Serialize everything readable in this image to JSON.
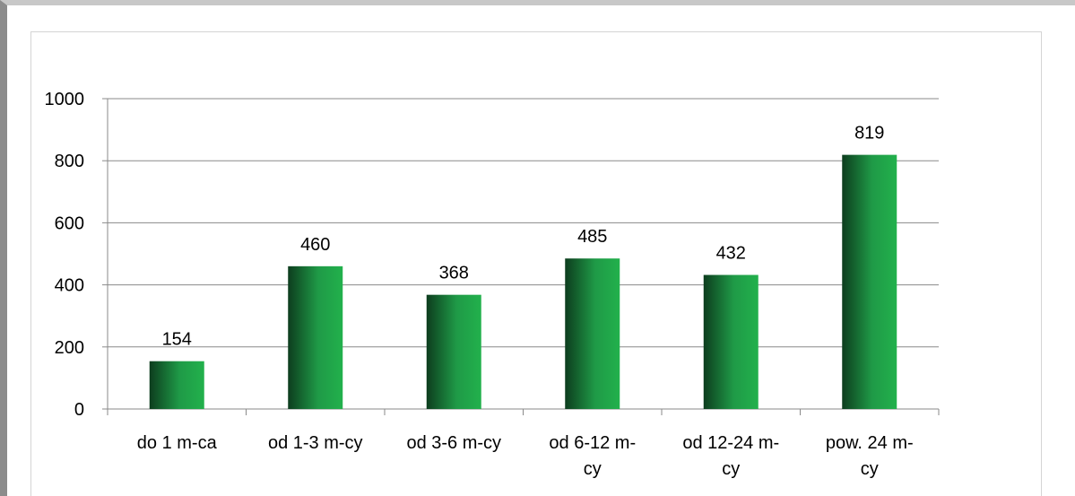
{
  "chart_data": {
    "type": "bar",
    "categories": [
      [
        "do 1 m-ca"
      ],
      [
        "od 1-3 m-cy"
      ],
      [
        "od 3-6 m-cy"
      ],
      [
        "od 6-12 m-",
        "cy"
      ],
      [
        "od 12-24 m-",
        "cy"
      ],
      [
        "pow. 24 m-",
        "cy"
      ]
    ],
    "values": [
      154,
      460,
      368,
      485,
      432,
      819
    ],
    "data_labels": [
      "154",
      "460",
      "368",
      "485",
      "432",
      "819"
    ],
    "ylim": [
      0,
      1000
    ],
    "yticks": [
      "0",
      "200",
      "400",
      "600",
      "800",
      "1000"
    ],
    "grid": true,
    "legend": "none",
    "bar_colors": {
      "dark": "#0d3d1e",
      "mid": "#1f9a47",
      "light": "#22b14c"
    }
  }
}
